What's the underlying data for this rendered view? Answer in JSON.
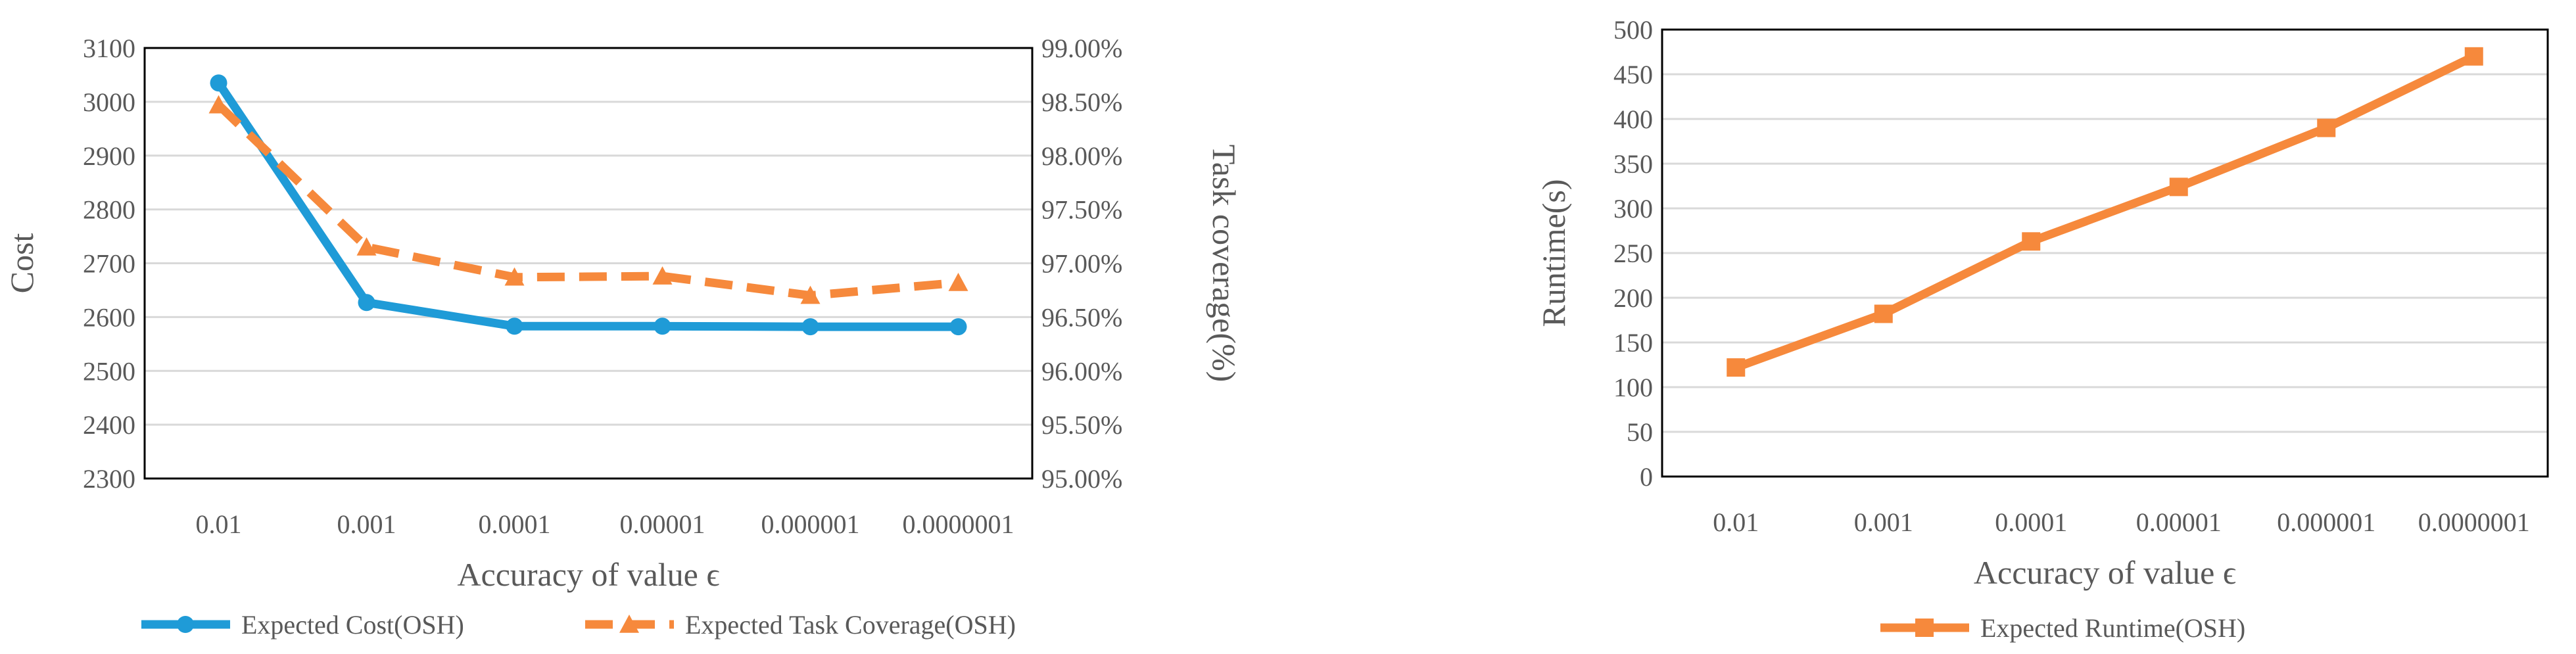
{
  "chart_data": [
    {
      "type": "line",
      "categories": [
        "0.01",
        "0.001",
        "0.0001",
        "0.00001",
        "0.000001",
        "0.0000001"
      ],
      "xlabel": "Accuracy  of value ϵ",
      "ylabel": "Cost",
      "y2label": "Task  coverage(%)",
      "ylim": [
        2300,
        3100
      ],
      "yticks": [
        "2300",
        "2400",
        "2500",
        "2600",
        "2700",
        "2800",
        "2900",
        "3000",
        "3100"
      ],
      "y2lim": [
        95.0,
        99.0
      ],
      "y2ticks": [
        "95.00%",
        "95.50%",
        "96.00%",
        "96.50%",
        "97.00%",
        "97.50%",
        "98.00%",
        "98.50%",
        "99.00%"
      ],
      "grid": true,
      "legend_position": "bottom",
      "series": [
        {
          "name": "Expected Cost(OSH)",
          "axis": "left",
          "color": "#1f9bd7",
          "style": "solid",
          "marker": "circle",
          "values": [
            3035,
            2627,
            2583,
            2583,
            2582,
            2582
          ]
        },
        {
          "name": "Expected Task Coverage(OSH)",
          "axis": "right",
          "color": "#f6893c",
          "style": "dashed",
          "marker": "triangle",
          "values": [
            98.47,
            97.15,
            96.87,
            96.88,
            96.7,
            96.82
          ]
        }
      ]
    },
    {
      "type": "line",
      "categories": [
        "0.01",
        "0.001",
        "0.0001",
        "0.00001",
        "0.000001",
        "0.0000001"
      ],
      "xlabel": "Accuracy  of value ϵ",
      "ylabel": "Runtime(s)",
      "ylim": [
        0,
        500
      ],
      "yticks": [
        "0",
        "50",
        "100",
        "150",
        "200",
        "250",
        "300",
        "350",
        "400",
        "450",
        "500"
      ],
      "grid": true,
      "legend_position": "bottom",
      "series": [
        {
          "name": "Expected Runtime(OSH)",
          "axis": "left",
          "color": "#f6893c",
          "style": "solid",
          "marker": "square",
          "values": [
            122,
            182,
            263,
            324,
            390,
            470
          ]
        }
      ]
    }
  ]
}
